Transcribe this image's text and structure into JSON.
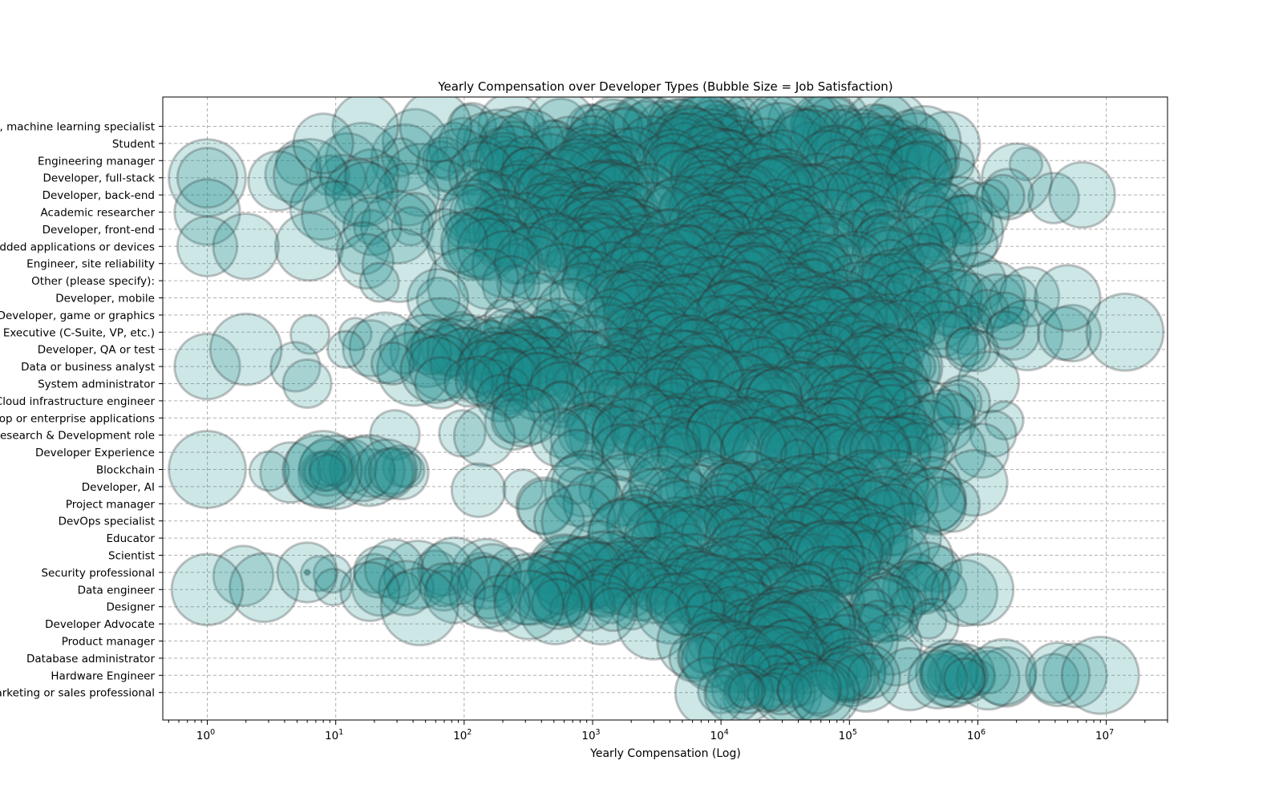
{
  "chart_data": {
    "type": "scatter",
    "title": "Yearly Compensation over Developer Types (Bubble Size = Job Satisfaction)",
    "xlabel": "Yearly Compensation (Log)",
    "ylabel": "",
    "x_scale": "log",
    "xlim": [
      0.45,
      30000000
    ],
    "x_ticks": [
      {
        "value": 1,
        "base": "10",
        "exp": "0"
      },
      {
        "value": 10,
        "base": "10",
        "exp": "1"
      },
      {
        "value": 100,
        "base": "10",
        "exp": "2"
      },
      {
        "value": 1000,
        "base": "10",
        "exp": "3"
      },
      {
        "value": 10000,
        "base": "10",
        "exp": "4"
      },
      {
        "value": 100000,
        "base": "10",
        "exp": "5"
      },
      {
        "value": 1000000,
        "base": "10",
        "exp": "6"
      },
      {
        "value": 10000000,
        "base": "10",
        "exp": "7"
      }
    ],
    "categories": [
      "Developer, machine learning specialist",
      "Student",
      "Engineering manager",
      "Developer, full-stack",
      "Developer, back-end",
      "Academic researcher",
      "Developer, front-end",
      "Developer, embedded applications or devices",
      "Engineer, site reliability",
      "Other (please specify):",
      "Developer, mobile",
      "Developer, game or graphics",
      "Senior Executive (C-Suite, VP, etc.)",
      "Developer, QA or test",
      "Data or business analyst",
      "System administrator",
      "Cloud infrastructure engineer",
      "Developer, desktop or enterprise applications",
      "Research & Development role",
      "Developer Experience",
      "Blockchain",
      "Developer, AI",
      "Project manager",
      "DevOps specialist",
      "Educator",
      "Scientist",
      "Security professional",
      "Data engineer",
      "Designer",
      "Developer Advocate",
      "Product manager",
      "Database administrator",
      "Hardware Engineer",
      "Marketing or sales professional"
    ],
    "category_ranges": [
      [
        10,
        2000000
      ],
      [
        5,
        1500000
      ],
      [
        1,
        3000000
      ],
      [
        1,
        3000000
      ],
      [
        1,
        6500000
      ],
      [
        1,
        2500000
      ],
      [
        1,
        3500000
      ],
      [
        1,
        2000000
      ],
      [
        10,
        1500000
      ],
      [
        10,
        1500000
      ],
      [
        5,
        5000000
      ],
      [
        50,
        2500000
      ],
      [
        2,
        15000000
      ],
      [
        1,
        2500000
      ],
      [
        1,
        1800000
      ],
      [
        6,
        1800000
      ],
      [
        100,
        1800000
      ],
      [
        30,
        2000000
      ],
      [
        20,
        1800000
      ],
      [
        200,
        2000000
      ],
      [
        1,
        80
      ],
      [
        100,
        1500000
      ],
      [
        200,
        1200000
      ],
      [
        100,
        800000
      ],
      [
        500,
        800000
      ],
      [
        500,
        800000
      ],
      [
        1,
        1500000
      ],
      [
        1,
        1000000
      ],
      [
        40,
        800000
      ],
      [
        700,
        800000
      ],
      [
        1000,
        500000
      ],
      [
        1000,
        400000
      ],
      [
        1500,
        9000000
      ],
      [
        3000,
        300000
      ]
    ],
    "highlight_points": [
      {
        "category": "Developer, full-stack",
        "x": 1,
        "size": 10
      },
      {
        "category": "Developer, full-stack",
        "x": 1,
        "size": 7
      },
      {
        "category": "Academic researcher",
        "x": 1,
        "size": 8
      },
      {
        "category": "Developer, embedded applications or devices",
        "x": 1,
        "size": 7
      },
      {
        "category": "Developer, embedded applications or devices",
        "x": 2,
        "size": 8
      },
      {
        "category": "Developer, back-end",
        "x": 6500000,
        "size": 8
      },
      {
        "category": "Developer, mobile",
        "x": 5000000,
        "size": 8
      },
      {
        "category": "Senior Executive (C-Suite, VP, etc.)",
        "x": 14000000,
        "size": 10
      },
      {
        "category": "Data or business analyst",
        "x": 1,
        "size": 8
      },
      {
        "category": "Developer, QA or test",
        "x": 2,
        "size": 9
      },
      {
        "category": "Developer, QA or test",
        "x": 12,
        "size": 3
      },
      {
        "category": "System administrator",
        "x": 6,
        "size": 5
      },
      {
        "category": "Blockchain",
        "x": 1,
        "size": 10
      },
      {
        "category": "Blockchain",
        "x": 8,
        "size": 10
      },
      {
        "category": "Blockchain",
        "x": 25,
        "size": 7
      },
      {
        "category": "Security professional",
        "x": 6,
        "size": 7
      },
      {
        "category": "Security professional",
        "x": 6,
        "size": 0.5
      },
      {
        "category": "Data engineer",
        "x": 1,
        "size": 9
      },
      {
        "category": "Data engineer",
        "x": 1000000,
        "size": 9
      },
      {
        "category": "Designer",
        "x": 45,
        "size": 10
      },
      {
        "category": "Hardware Engineer",
        "x": 9000000,
        "size": 10
      },
      {
        "category": "Developer, machine learning specialist",
        "x": 17,
        "size": 8
      },
      {
        "category": "Developer, machine learning specialist",
        "x": 60,
        "size": 9
      },
      {
        "category": "Student",
        "x": 8,
        "size": 7
      }
    ],
    "bubble_size": "Job Satisfaction",
    "colors": {
      "fill": "#1a8f8f",
      "core": "#007a7a",
      "edge": "#333333"
    },
    "grid": true,
    "legend": "none"
  }
}
